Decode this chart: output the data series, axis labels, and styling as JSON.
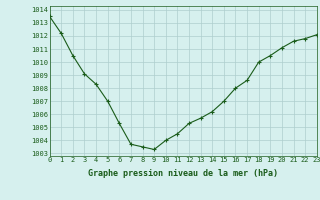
{
  "x": [
    0,
    1,
    2,
    3,
    4,
    5,
    6,
    7,
    8,
    9,
    10,
    11,
    12,
    13,
    14,
    15,
    16,
    17,
    18,
    19,
    20,
    21,
    22,
    23
  ],
  "y": [
    1013.5,
    1012.2,
    1010.5,
    1009.1,
    1008.3,
    1007.0,
    1005.3,
    1003.7,
    1003.5,
    1003.3,
    1004.0,
    1004.5,
    1005.3,
    1005.7,
    1006.2,
    1007.0,
    1008.0,
    1008.6,
    1010.0,
    1010.5,
    1011.1,
    1011.6,
    1011.8,
    1012.1
  ],
  "line_color": "#1a5c1a",
  "marker": "+",
  "marker_size": 3,
  "bg_color": "#d6f0ee",
  "grid_color": "#aecece",
  "xlabel": "Graphe pression niveau de la mer (hPa)",
  "xlabel_color": "#1a5c1a",
  "ylabel_ticks": [
    1003,
    1004,
    1005,
    1006,
    1007,
    1008,
    1009,
    1010,
    1011,
    1012,
    1013,
    1014
  ],
  "xlim": [
    0,
    23
  ],
  "ylim": [
    1002.8,
    1014.3
  ],
  "xticks": [
    0,
    1,
    2,
    3,
    4,
    5,
    6,
    7,
    8,
    9,
    10,
    11,
    12,
    13,
    14,
    15,
    16,
    17,
    18,
    19,
    20,
    21,
    22,
    23
  ],
  "tick_fontsize": 5.0,
  "xlabel_fontsize": 6.0
}
